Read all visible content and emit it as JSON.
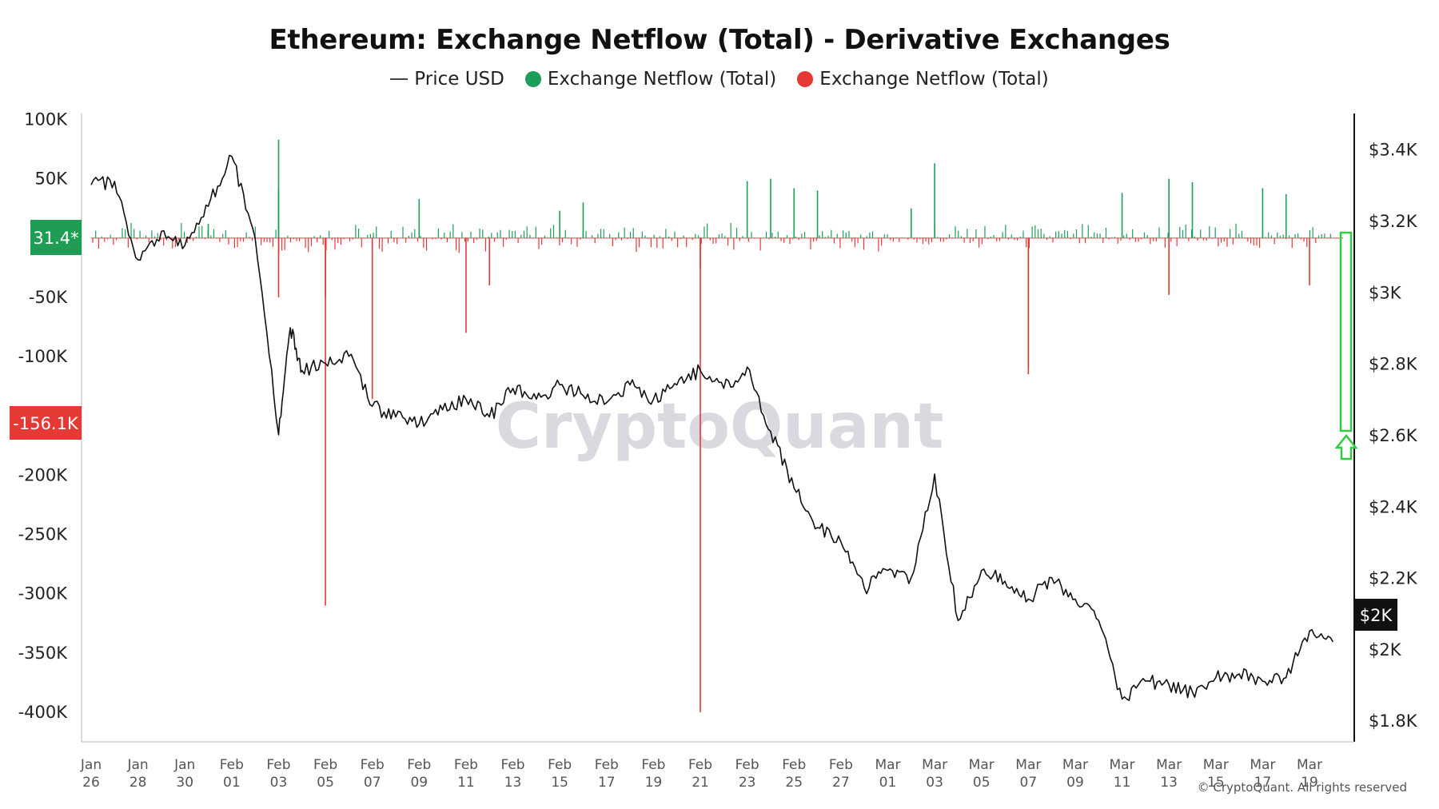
{
  "title": "Ethereum: Exchange Netflow (Total) - Derivative Exchanges",
  "watermark": "CryptoQuant",
  "copyright": "© CryptoQuant. All rights reserved",
  "colors": {
    "inflow": "#1a9e5a",
    "outflow": "#e53935",
    "price": "#111111",
    "badge_green": "#1f9d55",
    "badge_red": "#e53935",
    "badge_dark": "#111111",
    "arrow": "#2ecc40"
  },
  "badges": {
    "netflow_positive": "31.4*",
    "netflow_negative": "-156.1K",
    "price_last": "$2K"
  },
  "chart_data": {
    "type": "bar+line",
    "title": "Ethereum: Exchange Netflow (Total) - Derivative Exchanges",
    "legend": [
      "Price USD",
      "Exchange Netflow (Total)",
      "Exchange Netflow (Total)"
    ],
    "legend_position": "top-center",
    "left_axis": {
      "ticks": [
        "100K",
        "50K",
        "0",
        "-50K",
        "-100K",
        "-150K",
        "-200K",
        "-250K",
        "-300K",
        "-350K",
        "-400K"
      ],
      "range": [
        -425000,
        105000
      ]
    },
    "right_axis": {
      "ticks": [
        "$3.4K",
        "$3.2K",
        "$3K",
        "$2.8K",
        "$2.6K",
        "$2.4K",
        "$2.2K",
        "$2K",
        "$1.8K"
      ],
      "range": [
        1740,
        3500
      ]
    },
    "x_ticks": [
      [
        "Jan",
        "26"
      ],
      [
        "Jan",
        "28"
      ],
      [
        "Jan",
        "30"
      ],
      [
        "Feb",
        "01"
      ],
      [
        "Feb",
        "03"
      ],
      [
        "Feb",
        "05"
      ],
      [
        "Feb",
        "07"
      ],
      [
        "Feb",
        "09"
      ],
      [
        "Feb",
        "11"
      ],
      [
        "Feb",
        "13"
      ],
      [
        "Feb",
        "15"
      ],
      [
        "Feb",
        "17"
      ],
      [
        "Feb",
        "19"
      ],
      [
        "Feb",
        "21"
      ],
      [
        "Feb",
        "23"
      ],
      [
        "Feb",
        "25"
      ],
      [
        "Feb",
        "27"
      ],
      [
        "Mar",
        "01"
      ],
      [
        "Mar",
        "03"
      ],
      [
        "Mar",
        "05"
      ],
      [
        "Mar",
        "07"
      ],
      [
        "Mar",
        "09"
      ],
      [
        "Mar",
        "11"
      ],
      [
        "Mar",
        "13"
      ],
      [
        "Mar",
        "15"
      ],
      [
        "Mar",
        "17"
      ],
      [
        "Mar",
        "19"
      ]
    ],
    "price_series": {
      "name": "Price USD",
      "points": [
        [
          "Jan 26",
          3300
        ],
        [
          "Jan 27",
          3310
        ],
        [
          "Jan 28",
          3090
        ],
        [
          "Jan 29",
          3170
        ],
        [
          "Jan 30",
          3130
        ],
        [
          "Jan 31",
          3240
        ],
        [
          "Feb 01",
          3380
        ],
        [
          "Feb 02",
          3150
        ],
        [
          "Feb 03",
          2600
        ],
        [
          "Feb 03 12h",
          2900
        ],
        [
          "Feb 04",
          2780
        ],
        [
          "Feb 05",
          2800
        ],
        [
          "Feb 06",
          2820
        ],
        [
          "Feb 07",
          2680
        ],
        [
          "Feb 08",
          2650
        ],
        [
          "Feb 09",
          2630
        ],
        [
          "Feb 10",
          2670
        ],
        [
          "Feb 11",
          2700
        ],
        [
          "Feb 12",
          2650
        ],
        [
          "Feb 13",
          2730
        ],
        [
          "Feb 14",
          2700
        ],
        [
          "Feb 15",
          2740
        ],
        [
          "Feb 16",
          2710
        ],
        [
          "Feb 17",
          2690
        ],
        [
          "Feb 18",
          2740
        ],
        [
          "Feb 19",
          2700
        ],
        [
          "Feb 20",
          2740
        ],
        [
          "Feb 21",
          2780
        ],
        [
          "Feb 22",
          2730
        ],
        [
          "Feb 23",
          2790
        ],
        [
          "Feb 24",
          2610
        ],
        [
          "Feb 25",
          2450
        ],
        [
          "Feb 26",
          2340
        ],
        [
          "Feb 27",
          2300
        ],
        [
          "Feb 28",
          2170
        ],
        [
          "Mar 01",
          2220
        ],
        [
          "Mar 02",
          2200
        ],
        [
          "Mar 03",
          2490
        ],
        [
          "Mar 04",
          2080
        ],
        [
          "Mar 05",
          2220
        ],
        [
          "Mar 06",
          2190
        ],
        [
          "Mar 07",
          2140
        ],
        [
          "Mar 08",
          2200
        ],
        [
          "Mar 09",
          2140
        ],
        [
          "Mar 10",
          2080
        ],
        [
          "Mar 11",
          1860
        ],
        [
          "Mar 12",
          1910
        ],
        [
          "Mar 13",
          1900
        ],
        [
          "Mar 14",
          1880
        ],
        [
          "Mar 15",
          1920
        ],
        [
          "Mar 16",
          1930
        ],
        [
          "Mar 17",
          1910
        ],
        [
          "Mar 18",
          1920
        ],
        [
          "Mar 19",
          2050
        ],
        [
          "Mar 20",
          2020
        ]
      ]
    },
    "netflow_spikes": [
      [
        "Feb 03",
        83000
      ],
      [
        "Feb 03",
        40000
      ],
      [
        "Jan 31",
        12000
      ],
      [
        "Feb 09",
        33000
      ],
      [
        "Feb 16",
        30000
      ],
      [
        "Feb 15",
        23000
      ],
      [
        "Feb 23",
        48000
      ],
      [
        "Feb 24",
        50000
      ],
      [
        "Feb 25",
        42000
      ],
      [
        "Feb 26",
        40000
      ],
      [
        "Mar 03",
        63000
      ],
      [
        "Mar 02",
        25000
      ],
      [
        "Mar 11",
        38000
      ],
      [
        "Mar 13",
        50000
      ],
      [
        "Mar 14",
        47000
      ],
      [
        "Mar 17",
        42000
      ],
      [
        "Mar 18",
        37000
      ],
      [
        "Feb 03",
        -50000
      ],
      [
        "Feb 05",
        -310000
      ],
      [
        "Feb 05",
        -50000
      ],
      [
        "Feb 07",
        -136000
      ],
      [
        "Feb 11",
        -80000
      ],
      [
        "Feb 12",
        -40000
      ],
      [
        "Feb 21",
        -400000
      ],
      [
        "Feb 21",
        -25000
      ],
      [
        "Mar 07",
        -115000
      ],
      [
        "Mar 07",
        -110000
      ],
      [
        "Mar 13",
        -48000
      ],
      [
        "Mar 19",
        -40000
      ]
    ]
  }
}
